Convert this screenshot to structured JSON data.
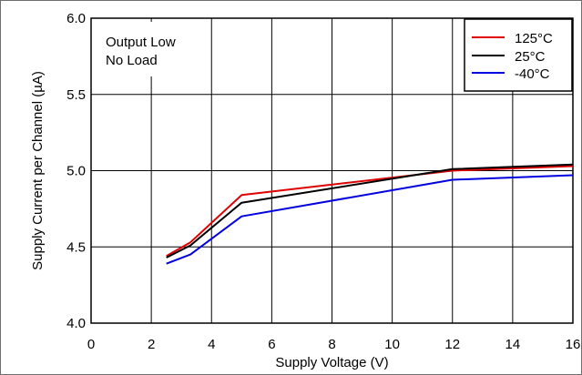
{
  "chart_data": {
    "type": "line",
    "xlabel": "Supply Voltage (V)",
    "ylabel": "Supply Current per Channel (µA)",
    "xlim": [
      0,
      16
    ],
    "ylim": [
      4.0,
      6.0
    ],
    "x_ticks": [
      "0",
      "2",
      "4",
      "6",
      "8",
      "10",
      "12",
      "14",
      "16"
    ],
    "y_ticks": [
      "4.0",
      "4.5",
      "5.0",
      "5.5",
      "6.0"
    ],
    "grid": true,
    "legend_position": "top-right",
    "annotations": [
      "Output Low",
      "No Load"
    ],
    "series": [
      {
        "name": "125°C",
        "color": "#e00000",
        "points": [
          [
            2.5,
            4.44
          ],
          [
            3.3,
            4.53
          ],
          [
            5.0,
            4.84
          ],
          [
            12.0,
            5.0
          ],
          [
            16.0,
            5.03
          ]
        ]
      },
      {
        "name": "25°C",
        "color": "#000000",
        "points": [
          [
            2.5,
            4.43
          ],
          [
            3.3,
            4.51
          ],
          [
            5.0,
            4.79
          ],
          [
            12.0,
            5.01
          ],
          [
            16.0,
            5.04
          ]
        ]
      },
      {
        "name": "-40°C",
        "color": "#0000e0",
        "points": [
          [
            2.5,
            4.39
          ],
          [
            3.3,
            4.45
          ],
          [
            5.0,
            4.7
          ],
          [
            12.0,
            4.94
          ],
          [
            16.0,
            4.97
          ]
        ]
      }
    ]
  }
}
